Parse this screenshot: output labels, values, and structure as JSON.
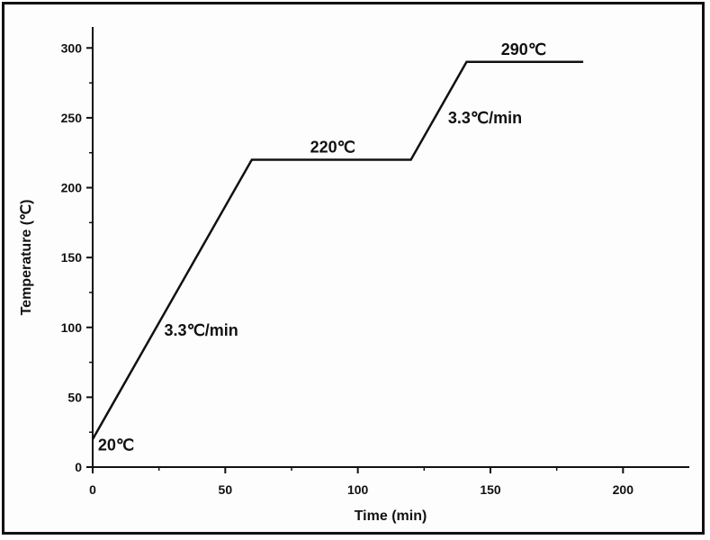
{
  "chart_data": {
    "type": "line",
    "title": "",
    "xlabel": "Time (min)",
    "ylabel": "Temperature (℃)",
    "xlim": [
      0,
      225
    ],
    "ylim": [
      0,
      315
    ],
    "x_ticks": [
      0,
      50,
      100,
      150,
      200
    ],
    "y_ticks": [
      0,
      50,
      100,
      150,
      200,
      250,
      300
    ],
    "grid": false,
    "series": [
      {
        "name": "",
        "color": "#111111",
        "points": [
          {
            "x": 0,
            "y": 20
          },
          {
            "x": 60,
            "y": 220
          },
          {
            "x": 120,
            "y": 220
          },
          {
            "x": 141,
            "y": 290
          },
          {
            "x": 185,
            "y": 290
          }
        ]
      }
    ],
    "annotations": [
      {
        "text": "20℃",
        "x": 2,
        "y": 12
      },
      {
        "text": "3.3℃/min",
        "x": 27,
        "y": 94
      },
      {
        "text": "220℃",
        "x": 82,
        "y": 225
      },
      {
        "text": "3.3℃/min",
        "x": 134,
        "y": 246
      },
      {
        "text": "290℃",
        "x": 154,
        "y": 295
      }
    ]
  }
}
